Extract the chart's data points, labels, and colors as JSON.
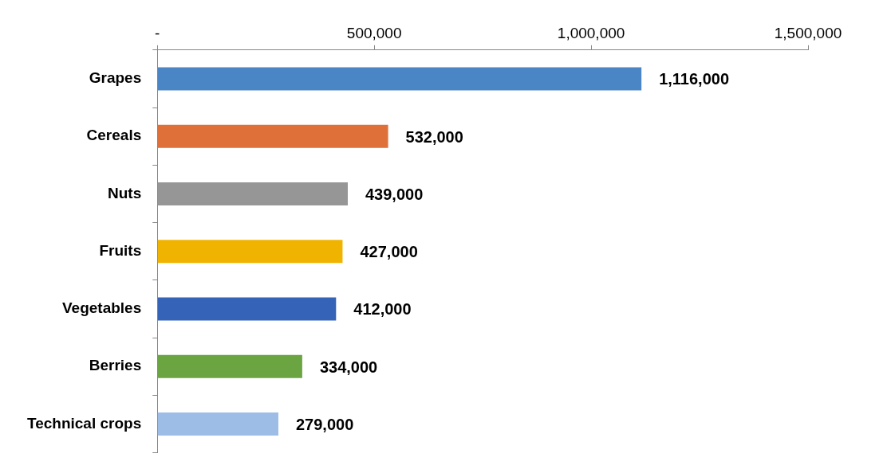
{
  "chart_data": {
    "type": "bar",
    "orientation": "horizontal",
    "categories": [
      "Grapes",
      "Cereals",
      "Nuts",
      "Fruits",
      "Vegetables",
      "Berries",
      "Technical crops"
    ],
    "values": [
      1116000,
      532000,
      439000,
      427000,
      412000,
      334000,
      279000
    ],
    "colors": [
      "#4a86c5",
      "#e0703a",
      "#969696",
      "#f0b400",
      "#3563b8",
      "#6aa542",
      "#9ebde6"
    ],
    "xlim": [
      0,
      1500000
    ],
    "xticks": [
      {
        "value": 0,
        "label": "-"
      },
      {
        "value": 500000,
        "label": "500,000"
      },
      {
        "value": 1000000,
        "label": "1,000,000"
      },
      {
        "value": 1500000,
        "label": "1,500,000"
      }
    ],
    "value_labels": [
      "1,116,000",
      "532,000",
      "439,000",
      "427,000",
      "412,000",
      "334,000",
      "279,000"
    ],
    "grid": false
  }
}
